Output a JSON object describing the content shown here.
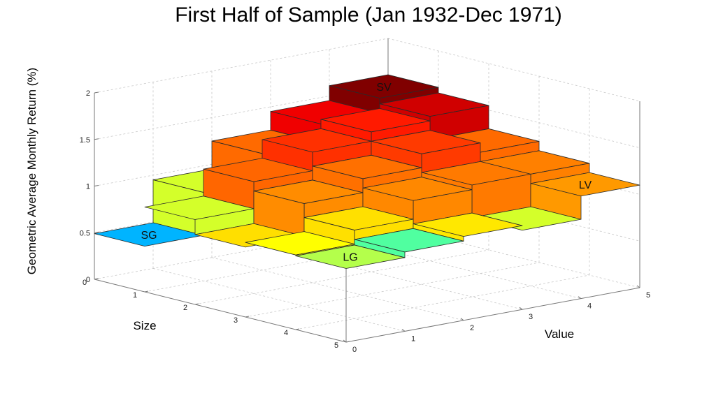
{
  "chart_data": {
    "type": "bar3d-stairs",
    "title": "First Half of Sample (Jan 1932-Dec 1971)",
    "xlabel": "Size",
    "ylabel": "Value",
    "zlabel": "Geometric Average Monthly Return (%)",
    "size_ticks": [
      "0",
      "1",
      "2",
      "3",
      "4",
      "5"
    ],
    "value_ticks": [
      "0",
      "1",
      "2",
      "3",
      "4",
      "5"
    ],
    "z_ticks": [
      "0",
      "0.5",
      "1",
      "1.5",
      "2"
    ],
    "xlim": [
      0,
      5
    ],
    "ylim": [
      0,
      5
    ],
    "zlim": [
      0,
      2
    ],
    "grid": true,
    "colormap": "jet",
    "heights": [
      [
        0.49,
        0.95,
        1.25,
        1.45,
        1.61
      ],
      [
        0.91,
        1.2,
        1.4,
        1.5,
        1.55
      ],
      [
        0.75,
        1.1,
        1.25,
        1.4,
        1.3
      ],
      [
        0.8,
        0.95,
        1.15,
        1.2,
        1.2
      ],
      [
        0.79,
        0.85,
        0.9,
        0.85,
        1.1
      ]
    ],
    "colors": [
      [
        "#00b4ff",
        "#d4ff2a",
        "#ff6a00",
        "#f00000",
        "#800000"
      ],
      [
        "#d4ff2a",
        "#ff6600",
        "#ff3000",
        "#ff1a00",
        "#d00000"
      ],
      [
        "#ffdf00",
        "#ff8c00",
        "#ff7000",
        "#ff3a00",
        "#ff6a00"
      ],
      [
        "#ffff00",
        "#ffe000",
        "#ff8800",
        "#ff7a00",
        "#ff8000"
      ],
      [
        "#b4ff4b",
        "#50ffa0",
        "#ffe800",
        "#d4ff2a",
        "#ff9900"
      ]
    ],
    "annotations": [
      {
        "text": "SG",
        "size": 0,
        "value": 0
      },
      {
        "text": "SV",
        "size": 0,
        "value": 4
      },
      {
        "text": "LG",
        "size": 4,
        "value": 0
      },
      {
        "text": "LV",
        "size": 4,
        "value": 4
      }
    ]
  }
}
